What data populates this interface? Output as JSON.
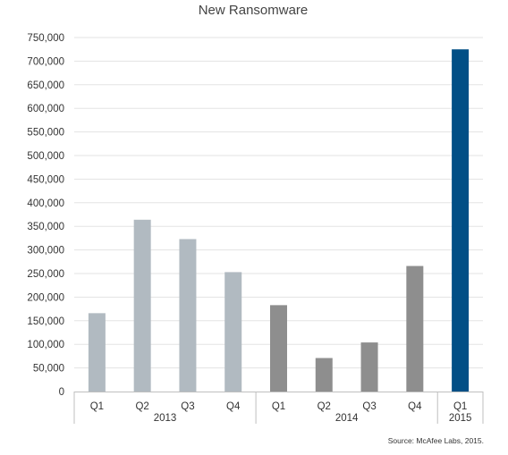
{
  "chart_data": {
    "type": "bar",
    "title": "New Ransomware",
    "xlabel": "",
    "ylabel": "",
    "categories": [
      "Q1",
      "Q2",
      "Q3",
      "Q4",
      "Q1",
      "Q2",
      "Q3",
      "Q4",
      "Q1"
    ],
    "values": [
      166000,
      364000,
      323000,
      253000,
      183000,
      71000,
      104000,
      266000,
      725000
    ],
    "groups": [
      {
        "label": "2013",
        "start": 0,
        "end": 3
      },
      {
        "label": "2014",
        "start": 4,
        "end": 7
      },
      {
        "label": "2015",
        "start": 8,
        "end": 8
      }
    ],
    "ylim": [
      0,
      750000
    ],
    "yticks": [
      0,
      50000,
      100000,
      150000,
      200000,
      250000,
      300000,
      350000,
      400000,
      450000,
      500000,
      550000,
      600000,
      650000,
      700000,
      750000
    ],
    "ytick_labels": [
      "0",
      "50,000",
      "100,000",
      "150,000",
      "200,000",
      "250,000",
      "300,000",
      "350,000",
      "400,000",
      "450,000",
      "500,000",
      "550,000",
      "600,000",
      "650,000",
      "700,000",
      "750,000"
    ],
    "grid": true,
    "bar_colors": [
      "#b1bac1",
      "#b1bac1",
      "#b1bac1",
      "#b1bac1",
      "#8e8e8e",
      "#8e8e8e",
      "#8e8e8e",
      "#8e8e8e",
      "#024f86"
    ],
    "source": "Source: McAfee Labs, 2015."
  }
}
